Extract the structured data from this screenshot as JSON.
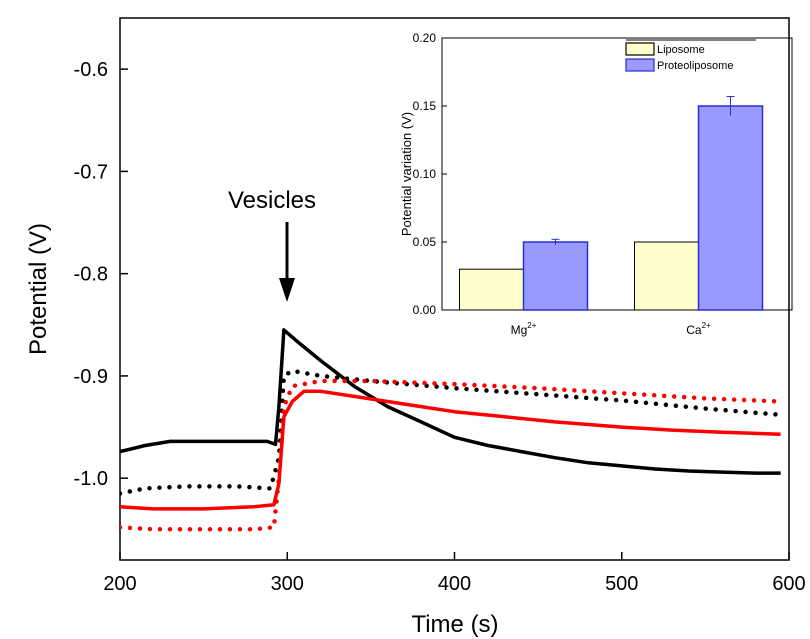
{
  "chart_data": [
    {
      "type": "line",
      "xlabel": "Time (s)",
      "ylabel": "Potential (V)",
      "xlim": [
        200,
        600
      ],
      "ylim": [
        -1.08,
        -0.55
      ],
      "xticks": [
        "200",
        "300",
        "400",
        "500",
        "600"
      ],
      "yticks": [
        "-0.6",
        "-0.7",
        "-0.8",
        "-0.9",
        "-1.0"
      ],
      "annotation": {
        "text": "Vesicles",
        "x": 298,
        "y": -0.855
      },
      "series": [
        {
          "color": "#000000",
          "style": "solid",
          "points": [
            [
              200,
              -0.974
            ],
            [
              215,
              -0.968
            ],
            [
              230,
              -0.964
            ],
            [
              260,
              -0.964
            ],
            [
              288,
              -0.964
            ],
            [
              293,
              -0.967
            ],
            [
              295,
              -0.93
            ],
            [
              298,
              -0.855
            ],
            [
              305,
              -0.865
            ],
            [
              320,
              -0.885
            ],
            [
              340,
              -0.91
            ],
            [
              360,
              -0.93
            ],
            [
              380,
              -0.945
            ],
            [
              400,
              -0.96
            ],
            [
              420,
              -0.968
            ],
            [
              440,
              -0.974
            ],
            [
              460,
              -0.98
            ],
            [
              480,
              -0.985
            ],
            [
              500,
              -0.988
            ],
            [
              520,
              -0.991
            ],
            [
              540,
              -0.993
            ],
            [
              560,
              -0.994
            ],
            [
              580,
              -0.995
            ],
            [
              595,
              -0.995
            ]
          ]
        },
        {
          "color": "#000000",
          "style": "dotted",
          "points": [
            [
              200,
              -1.015
            ],
            [
              215,
              -1.01
            ],
            [
              240,
              -1.008
            ],
            [
              270,
              -1.008
            ],
            [
              290,
              -1.01
            ],
            [
              295,
              -0.98
            ],
            [
              298,
              -0.9
            ],
            [
              303,
              -0.895
            ],
            [
              320,
              -0.9
            ],
            [
              350,
              -0.905
            ],
            [
              400,
              -0.912
            ],
            [
              450,
              -0.918
            ],
            [
              500,
              -0.924
            ],
            [
              550,
              -0.932
            ],
            [
              595,
              -0.938
            ]
          ]
        },
        {
          "color": "#ff0000",
          "style": "solid",
          "points": [
            [
              200,
              -1.028
            ],
            [
              220,
              -1.03
            ],
            [
              250,
              -1.03
            ],
            [
              280,
              -1.028
            ],
            [
              292,
              -1.026
            ],
            [
              295,
              -1.005
            ],
            [
              298,
              -0.94
            ],
            [
              303,
              -0.925
            ],
            [
              310,
              -0.915
            ],
            [
              320,
              -0.915
            ],
            [
              340,
              -0.92
            ],
            [
              360,
              -0.925
            ],
            [
              380,
              -0.93
            ],
            [
              400,
              -0.935
            ],
            [
              430,
              -0.94
            ],
            [
              460,
              -0.945
            ],
            [
              500,
              -0.95
            ],
            [
              530,
              -0.953
            ],
            [
              560,
              -0.955
            ],
            [
              595,
              -0.957
            ]
          ]
        },
        {
          "color": "#ff0000",
          "style": "dotted",
          "points": [
            [
              200,
              -1.048
            ],
            [
              220,
              -1.05
            ],
            [
              250,
              -1.05
            ],
            [
              280,
              -1.05
            ],
            [
              292,
              -1.048
            ],
            [
              295,
              -1.0
            ],
            [
              298,
              -0.93
            ],
            [
              303,
              -0.91
            ],
            [
              320,
              -0.905
            ],
            [
              350,
              -0.905
            ],
            [
              400,
              -0.908
            ],
            [
              450,
              -0.912
            ],
            [
              500,
              -0.917
            ],
            [
              550,
              -0.922
            ],
            [
              595,
              -0.925
            ]
          ]
        }
      ]
    },
    {
      "type": "bar",
      "ylabel": "Potential variation (V)",
      "ylim": [
        0,
        0.2
      ],
      "yticks": [
        "0.00",
        "0.05",
        "0.10",
        "0.15",
        "0.20"
      ],
      "legend_position": "top-right",
      "categories": [
        {
          "base": "Mg",
          "sup": "2+"
        },
        {
          "base": "Ca",
          "sup": "2+"
        }
      ],
      "series": [
        {
          "name": "Liposome",
          "color": "#ffffcc",
          "values": [
            0.03,
            0.05
          ],
          "errors": [
            0,
            0
          ]
        },
        {
          "name": "Proteoliposome",
          "color": "#9999ff",
          "values": [
            0.05,
            0.15
          ],
          "errors": [
            0.002,
            0.007
          ]
        }
      ]
    }
  ]
}
